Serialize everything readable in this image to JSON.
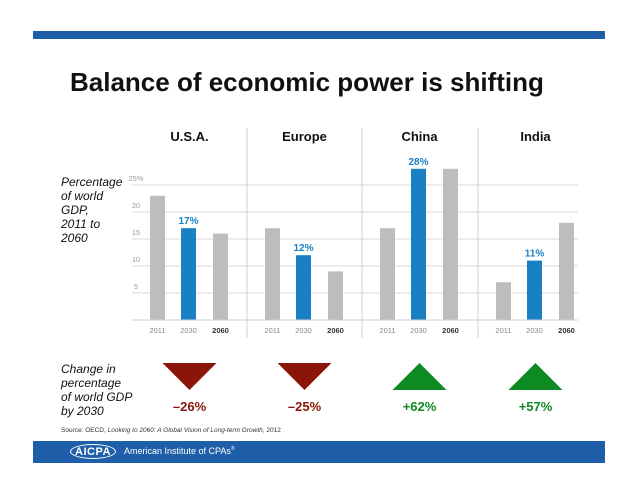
{
  "title": "Balance of economic power is shifting",
  "side_label": [
    "Percentage",
    "of world",
    "GDP,",
    "2011 to",
    "2060"
  ],
  "change_label": [
    "Change in",
    "percentage",
    "of world GDP",
    "by 2030"
  ],
  "source": {
    "prefix": "Source: OECD, ",
    "title": "Looking to 2060: A Global Vision of Long-term Growth",
    "suffix": ", 2012"
  },
  "footer": {
    "logo": "AICPA",
    "org": "American Institute of CPAs",
    "reg": "®"
  },
  "colors": {
    "highlight": "#1b7fc4",
    "gray": "#bdbdbd",
    "down": "#8b1508",
    "up": "#0e8a22",
    "brand": "#1f5ea8"
  },
  "chart_data": {
    "type": "bar",
    "title": "Balance of economic power is shifting",
    "ylabel": "Percentage of world GDP, 2011 to 2060",
    "ylim": [
      0,
      30
    ],
    "y_ticks": [
      "5",
      "10",
      "15",
      "20",
      "25%"
    ],
    "categories": [
      "2011",
      "2030",
      "2060"
    ],
    "series": [
      {
        "name": "U.S.A.",
        "values": [
          23,
          17,
          16
        ],
        "label": "17%",
        "change": "–26%",
        "direction": "down"
      },
      {
        "name": "Europe",
        "values": [
          17,
          12,
          9
        ],
        "label": "12%",
        "change": "–25%",
        "direction": "down"
      },
      {
        "name": "China",
        "values": [
          17,
          28,
          28
        ],
        "label": "28%",
        "change": "+62%",
        "direction": "up"
      },
      {
        "name": "India",
        "values": [
          7,
          11,
          18
        ],
        "label": "11%",
        "change": "+57%",
        "direction": "up"
      }
    ]
  }
}
